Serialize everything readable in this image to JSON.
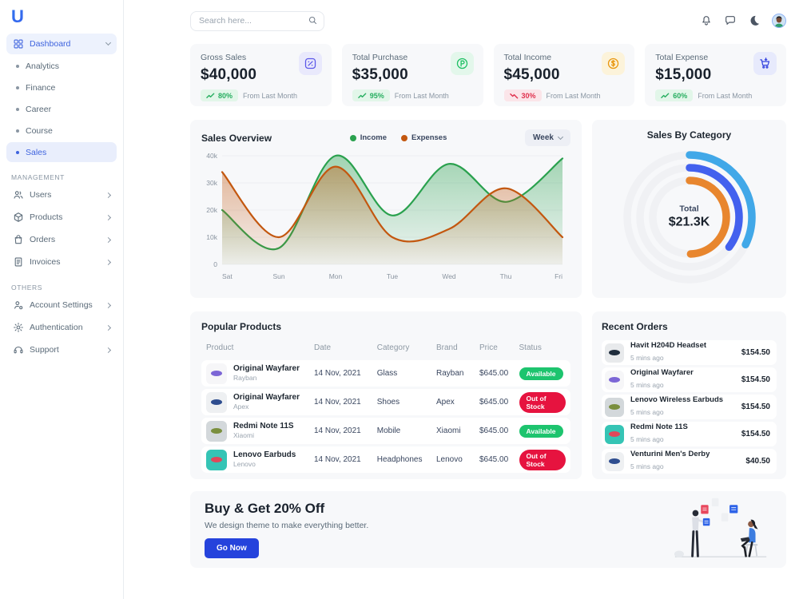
{
  "app": {
    "logo_text": "U"
  },
  "topbar": {
    "search_placeholder": "Search here..."
  },
  "sidebar": {
    "dashboard_label": "Dashboard",
    "dashboard_items": [
      {
        "label": "Analytics",
        "state": "normal"
      },
      {
        "label": "Finance",
        "state": "normal"
      },
      {
        "label": "Career",
        "state": "normal"
      },
      {
        "label": "Course",
        "state": "normal"
      },
      {
        "label": "Sales",
        "state": "active"
      }
    ],
    "sections": [
      {
        "title": "MANAGEMENT",
        "items": [
          {
            "label": "Users",
            "icon": "icon-users"
          },
          {
            "label": "Products",
            "icon": "icon-box"
          },
          {
            "label": "Orders",
            "icon": "icon-bag"
          },
          {
            "label": "Invoices",
            "icon": "icon-invoice"
          }
        ]
      },
      {
        "title": "OTHERS",
        "items": [
          {
            "label": "Account Settings",
            "icon": "icon-user-gear"
          },
          {
            "label": "Authentication",
            "icon": "icon-gear"
          },
          {
            "label": "Support",
            "icon": "icon-headset"
          }
        ]
      }
    ]
  },
  "stat_cards": [
    {
      "label": "Gross Sales",
      "value": "$40,000",
      "delta": "80%",
      "dir": "up",
      "note": "From Last Month",
      "icon": "icon-percent",
      "icon_fg": "#5b57e8",
      "icon_bg": "#e9e9fc"
    },
    {
      "label": "Total Purchase",
      "value": "$35,000",
      "delta": "95%",
      "dir": "up",
      "note": "From Last Month",
      "icon": "icon-p-circle",
      "icon_fg": "#1dbf63",
      "icon_bg": "#e3f7eb"
    },
    {
      "label": "Total Income",
      "value": "$45,000",
      "delta": "30%",
      "dir": "down",
      "note": "From Last Month",
      "icon": "icon-dollar-circle",
      "icon_fg": "#e8960f",
      "icon_bg": "#fcf3da"
    },
    {
      "label": "Total Expense",
      "value": "$15,000",
      "delta": "60%",
      "dir": "up",
      "note": "From Last Month",
      "icon": "icon-cart",
      "icon_fg": "#3746e0",
      "icon_bg": "#e7eafc"
    }
  ],
  "sales_overview": {
    "title": "Sales Overview",
    "period": "Week"
  },
  "sales_by_category": {
    "title": "Sales By Category",
    "center_label": "Total",
    "center_value": "$21.3K"
  },
  "chart_data": [
    {
      "type": "area",
      "title": "Sales Overview",
      "x": [
        "Sat",
        "Sun",
        "Mon",
        "Tue",
        "Wed",
        "Thu",
        "Fri"
      ],
      "series": [
        {
          "name": "Income",
          "color": "#2aa14e",
          "values": [
            20000,
            6000,
            40000,
            18000,
            37000,
            23000,
            39000
          ]
        },
        {
          "name": "Expenses",
          "color": "#c3570f",
          "values": [
            34000,
            10000,
            36000,
            10000,
            13000,
            28000,
            10000
          ]
        }
      ],
      "ylim": [
        0,
        40000
      ],
      "yticks": [
        0,
        10000,
        20000,
        30000,
        40000
      ],
      "ytick_labels": [
        "0",
        "10k",
        "20k",
        "30k",
        "40k"
      ],
      "legend_position": "top"
    },
    {
      "type": "radial-bar",
      "title": "Sales By Category",
      "center_label": "Total",
      "center_value": "$21.3K",
      "arcs": [
        {
          "ring": "outer",
          "color": "#41a8e8",
          "sweep_deg": 116
        },
        {
          "ring": "middle",
          "color": "#4361ee",
          "sweep_deg": 127
        },
        {
          "ring": "inner",
          "color": "#e8862e",
          "sweep_deg": 178
        }
      ]
    }
  ],
  "popular_products": {
    "title": "Popular Products",
    "columns": [
      "Product",
      "Date",
      "Category",
      "Brand",
      "Price",
      "Status"
    ],
    "rows": [
      {
        "name": "Original Wayfarer",
        "sub": "Rayban",
        "date": "14 Nov, 2021",
        "category": "Glass",
        "brand": "Rayban",
        "price": "$645.00",
        "status": "Available",
        "status_class": "st-available",
        "thumb": {
          "bg": "#f6f6f8",
          "fg": "#7c66d6"
        }
      },
      {
        "name": "Original Wayfarer",
        "sub": "Apex",
        "date": "14 Nov, 2021",
        "category": "Shoes",
        "brand": "Apex",
        "price": "$645.00",
        "status": "Out of Stock",
        "status_class": "st-oos",
        "thumb": {
          "bg": "#eef0f2",
          "fg": "#2e4d8f"
        }
      },
      {
        "name": "Redmi Note 11S",
        "sub": "Xiaomi",
        "date": "14 Nov, 2021",
        "category": "Mobile",
        "brand": "Xiaomi",
        "price": "$645.00",
        "status": "Available",
        "status_class": "st-available",
        "thumb": {
          "bg": "#d3d8db",
          "fg": "#7a8f3e"
        }
      },
      {
        "name": "Lenovo Earbuds",
        "sub": "Lenovo",
        "date": "14 Nov, 2021",
        "category": "Headphones",
        "brand": "Lenovo",
        "price": "$645.00",
        "status": "Out of Stock",
        "status_class": "st-oos",
        "thumb": {
          "bg": "#35c4b5",
          "fg": "#e0485a"
        }
      }
    ]
  },
  "recent_orders": {
    "title": "Recent Orders",
    "items": [
      {
        "name": "Havit H204D Headset",
        "time": "5 mins ago",
        "price": "$154.50",
        "thumb": {
          "bg": "#e8eaec",
          "fg": "#1f2d3d"
        }
      },
      {
        "name": "Original Wayfarer",
        "time": "5 mins ago",
        "price": "$154.50",
        "thumb": {
          "bg": "#f6f6f8",
          "fg": "#7c66d6"
        }
      },
      {
        "name": "Lenovo Wireless Earbuds",
        "time": "5 mins ago",
        "price": "$154.50",
        "thumb": {
          "bg": "#d3d8db",
          "fg": "#7a8f3e"
        }
      },
      {
        "name": "Redmi Note 11S",
        "time": "5 mins ago",
        "price": "$154.50",
        "thumb": {
          "bg": "#35c4b5",
          "fg": "#e0485a"
        }
      },
      {
        "name": "Venturini Men's Derby",
        "time": "5 mins ago",
        "price": "$40.50",
        "thumb": {
          "bg": "#eef0f2",
          "fg": "#2e4d8f"
        }
      }
    ]
  },
  "banner": {
    "title": "Buy & Get 20% Off",
    "subtitle": "We design theme to make everything better.",
    "button": "Go Now"
  }
}
